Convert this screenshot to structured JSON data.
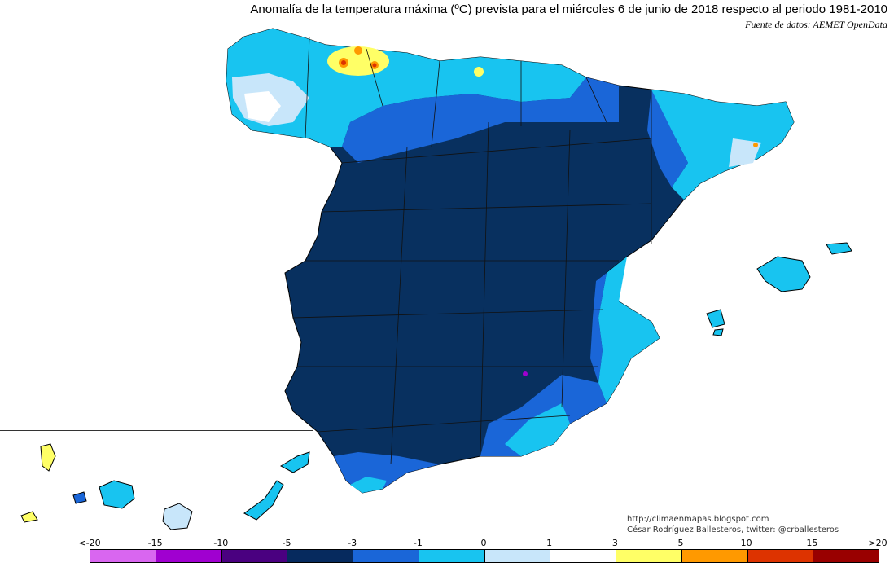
{
  "title": "Anomalía de la temperatura máxima (ºC) prevista para el miércoles 6 de junio de 2018 respecto al periodo 1981-2010",
  "source": "Fuente de datos: AEMET OpenData",
  "credits": {
    "line1": "http://climaenmapas.blogspot.com",
    "line2": "César Rodríguez Ballesteros, twitter: @crballesteros"
  },
  "legend": {
    "tick_labels": [
      "<-20",
      "-15",
      "-10",
      "-5",
      "-3",
      "-1",
      "0",
      "1",
      "3",
      "5",
      "10",
      "15",
      ">20"
    ],
    "colors": [
      "#d966f0",
      "#a000d0",
      "#4a0080",
      "#062a5e",
      "#1a66d8",
      "#18c4f0",
      "#c8e6fa",
      "#ffffff",
      "#ffff66",
      "#ff9900",
      "#dd3300",
      "#990000",
      "#6b3a00"
    ]
  },
  "map": {
    "dominant_anomaly_color": "#08305f",
    "regions": [
      "Península Ibérica",
      "Islas Baleares",
      "Islas Canarias"
    ]
  }
}
